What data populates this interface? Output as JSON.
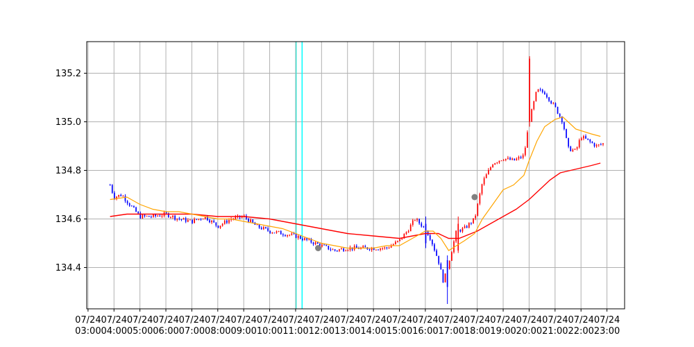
{
  "chart_data": {
    "type": "candlestick",
    "title": "",
    "xlabel": "",
    "ylabel": "",
    "ylim": [
      134.23,
      135.33
    ],
    "xlim": [
      2.95,
      23.68
    ],
    "grid": true,
    "legend": "none",
    "y_ticks": [
      {
        "value": 134.4,
        "label": "134.4"
      },
      {
        "value": 134.6,
        "label": "134.6"
      },
      {
        "value": 134.8,
        "label": "134.8"
      },
      {
        "value": 135.0,
        "label": "135.0"
      },
      {
        "value": 135.2,
        "label": "135.2"
      }
    ],
    "x_ticks": [
      {
        "value": 3,
        "line1": "07/24",
        "line2": "03:00"
      },
      {
        "value": 4,
        "line1": "07/24",
        "line2": "04:00"
      },
      {
        "value": 5,
        "line1": "07/24",
        "line2": "05:00"
      },
      {
        "value": 6,
        "line1": "07/24",
        "line2": "06:00"
      },
      {
        "value": 7,
        "line1": "07/24",
        "line2": "07:00"
      },
      {
        "value": 8,
        "line1": "07/24",
        "line2": "08:00"
      },
      {
        "value": 9,
        "line1": "07/24",
        "line2": "09:00"
      },
      {
        "value": 10,
        "line1": "07/24",
        "line2": "10:00"
      },
      {
        "value": 11,
        "line1": "07/24",
        "line2": "11:00"
      },
      {
        "value": 12,
        "line1": "07/24",
        "line2": "12:00"
      },
      {
        "value": 13,
        "line1": "07/24",
        "line2": "13:00"
      },
      {
        "value": 14,
        "line1": "07/24",
        "line2": "14:00"
      },
      {
        "value": 15,
        "line1": "07/24",
        "line2": "15:00"
      },
      {
        "value": 16,
        "line1": "07/24",
        "line2": "16:00"
      },
      {
        "value": 17,
        "line1": "07/24",
        "line2": "17:00"
      },
      {
        "value": 18,
        "line1": "07/24",
        "line2": "18:00"
      },
      {
        "value": 19,
        "line1": "07/24",
        "line2": "19:00"
      },
      {
        "value": 20,
        "line1": "07/24",
        "line2": "20:00"
      },
      {
        "value": 21,
        "line1": "07/24",
        "line2": "21:00"
      },
      {
        "value": 22,
        "line1": "07/24",
        "line2": "22:00"
      },
      {
        "value": 23,
        "line1": "07/24",
        "line2": "23:00"
      }
    ],
    "colors": {
      "up": "#ff0000",
      "down": "#0000ff",
      "fast_ma": "#ffa500",
      "slow_ma": "#ff0000",
      "vline_1": "#40e0d0",
      "vline_2": "#00ffff",
      "marker": "#808080",
      "grid": "#b0b0b0"
    },
    "price_path": [
      [
        3.85,
        134.74
      ],
      [
        4.0,
        134.69
      ],
      [
        4.3,
        134.7
      ],
      [
        4.6,
        134.66
      ],
      [
        5.0,
        134.61
      ],
      [
        5.5,
        134.61
      ],
      [
        6.0,
        134.62
      ],
      [
        6.5,
        134.6
      ],
      [
        7.0,
        134.59
      ],
      [
        7.5,
        134.61
      ],
      [
        8.0,
        134.57
      ],
      [
        8.5,
        134.6
      ],
      [
        9.0,
        134.61
      ],
      [
        9.5,
        134.57
      ],
      [
        10.0,
        134.55
      ],
      [
        10.5,
        134.54
      ],
      [
        11.0,
        134.53
      ],
      [
        11.5,
        134.51
      ],
      [
        12.0,
        134.49
      ],
      [
        12.5,
        134.47
      ],
      [
        13.0,
        134.48
      ],
      [
        13.5,
        134.48
      ],
      [
        14.0,
        134.48
      ],
      [
        14.5,
        134.48
      ],
      [
        15.0,
        134.51
      ],
      [
        15.3,
        134.55
      ],
      [
        15.6,
        134.6
      ],
      [
        16.0,
        134.56
      ],
      [
        16.2,
        134.52
      ],
      [
        16.5,
        134.43
      ],
      [
        16.7,
        134.34
      ],
      [
        16.9,
        134.42
      ],
      [
        17.2,
        134.55
      ],
      [
        17.5,
        134.56
      ],
      [
        17.9,
        134.6
      ],
      [
        18.2,
        134.75
      ],
      [
        18.6,
        134.83
      ],
      [
        19.0,
        134.85
      ],
      [
        19.4,
        134.84
      ],
      [
        19.8,
        134.86
      ],
      [
        20.0,
        135.0
      ],
      [
        20.3,
        135.13
      ],
      [
        20.6,
        135.12
      ],
      [
        21.0,
        135.06
      ],
      [
        21.3,
        135.0
      ],
      [
        21.5,
        134.89
      ],
      [
        21.8,
        134.88
      ],
      [
        22.0,
        134.94
      ],
      [
        22.3,
        134.92
      ],
      [
        22.6,
        134.9
      ],
      [
        22.85,
        134.91
      ]
    ],
    "special_candles": [
      [
        20.0,
        135.0,
        135.26,
        135.27,
        134.98
      ],
      [
        16.85,
        134.43,
        134.32,
        134.45,
        134.25
      ],
      [
        16.0,
        134.58,
        134.5,
        134.61,
        134.48
      ],
      [
        17.3,
        134.47,
        134.58,
        134.61,
        134.46
      ]
    ],
    "fast_ma": [
      [
        3.85,
        134.68
      ],
      [
        4.5,
        134.69
      ],
      [
        5.0,
        134.66
      ],
      [
        5.5,
        134.64
      ],
      [
        6.0,
        134.63
      ],
      [
        6.5,
        134.63
      ],
      [
        7.0,
        134.62
      ],
      [
        7.5,
        134.61
      ],
      [
        8.0,
        134.6
      ],
      [
        8.5,
        134.6
      ],
      [
        9.0,
        134.59
      ],
      [
        9.5,
        134.58
      ],
      [
        10.0,
        134.57
      ],
      [
        10.5,
        134.56
      ],
      [
        11.0,
        134.54
      ],
      [
        11.5,
        134.52
      ],
      [
        12.0,
        134.5
      ],
      [
        12.5,
        134.49
      ],
      [
        13.0,
        134.48
      ],
      [
        13.5,
        134.48
      ],
      [
        14.0,
        134.48
      ],
      [
        14.5,
        134.49
      ],
      [
        15.0,
        134.49
      ],
      [
        15.5,
        134.52
      ],
      [
        16.0,
        134.55
      ],
      [
        16.3,
        134.55
      ],
      [
        16.6,
        134.52
      ],
      [
        16.9,
        134.47
      ],
      [
        17.2,
        134.49
      ],
      [
        17.5,
        134.51
      ],
      [
        17.9,
        134.54
      ],
      [
        18.2,
        134.6
      ],
      [
        18.6,
        134.66
      ],
      [
        19.0,
        134.72
      ],
      [
        19.4,
        134.74
      ],
      [
        19.8,
        134.78
      ],
      [
        20.0,
        134.84
      ],
      [
        20.3,
        134.92
      ],
      [
        20.6,
        134.98
      ],
      [
        21.0,
        135.01
      ],
      [
        21.3,
        135.02
      ],
      [
        21.5,
        135.0
      ],
      [
        21.8,
        134.97
      ],
      [
        22.1,
        134.96
      ],
      [
        22.4,
        134.95
      ],
      [
        22.75,
        134.94
      ]
    ],
    "slow_ma": [
      [
        3.85,
        134.61
      ],
      [
        4.5,
        134.62
      ],
      [
        5.0,
        134.62
      ],
      [
        6.0,
        134.62
      ],
      [
        7.0,
        134.62
      ],
      [
        8.0,
        134.61
      ],
      [
        9.0,
        134.61
      ],
      [
        10.0,
        134.6
      ],
      [
        11.0,
        134.58
      ],
      [
        12.0,
        134.56
      ],
      [
        13.0,
        134.54
      ],
      [
        14.0,
        134.53
      ],
      [
        15.0,
        134.52
      ],
      [
        15.5,
        134.53
      ],
      [
        16.0,
        134.54
      ],
      [
        16.5,
        134.54
      ],
      [
        16.9,
        134.52
      ],
      [
        17.3,
        134.52
      ],
      [
        18.0,
        134.55
      ],
      [
        18.5,
        134.58
      ],
      [
        19.0,
        134.61
      ],
      [
        19.5,
        134.64
      ],
      [
        20.0,
        134.68
      ],
      [
        20.4,
        134.72
      ],
      [
        20.8,
        134.76
      ],
      [
        21.2,
        134.79
      ],
      [
        21.6,
        134.8
      ],
      [
        22.0,
        134.81
      ],
      [
        22.4,
        134.82
      ],
      [
        22.75,
        134.83
      ]
    ],
    "vlines": [
      11.02,
      11.25
    ],
    "markers": [
      [
        11.87,
        134.48
      ],
      [
        17.9,
        134.69
      ]
    ]
  }
}
